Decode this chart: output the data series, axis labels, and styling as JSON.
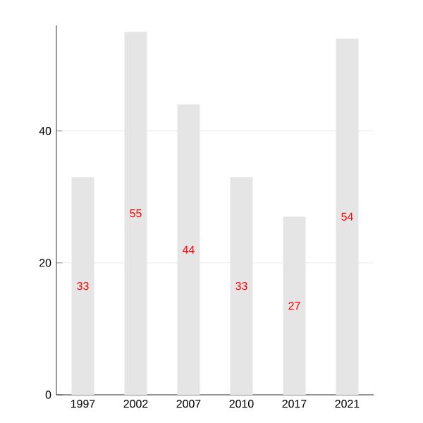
{
  "chart_data": {
    "type": "bar",
    "categories": [
      "1997",
      "2002",
      "2007",
      "2010",
      "2017",
      "2021"
    ],
    "values": [
      33,
      55,
      44,
      33,
      27,
      54
    ],
    "color": "#e5e5e5",
    "ylim": [
      0,
      56
    ],
    "yticks": [
      0,
      20,
      40
    ],
    "grid": "y",
    "data_labels": true
  }
}
